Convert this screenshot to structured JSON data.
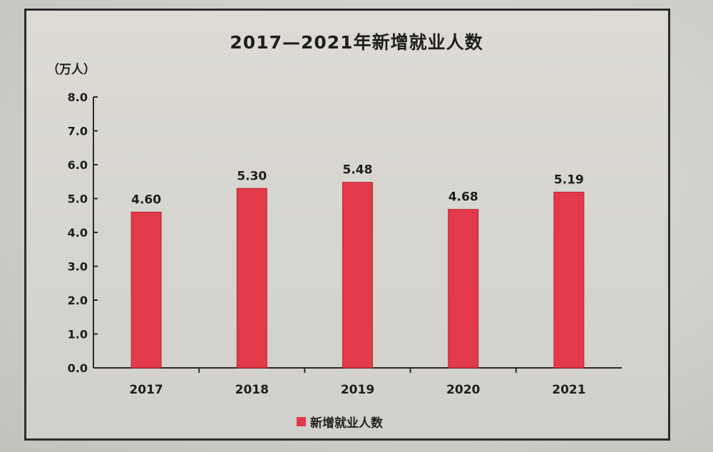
{
  "chart_data": {
    "type": "bar",
    "title": "2017—2021年新增就业人数",
    "ylabel": "（万人）",
    "xlabel": "",
    "categories": [
      "2017",
      "2018",
      "2019",
      "2020",
      "2021"
    ],
    "series": [
      {
        "name": "新增就业人数",
        "values": [
          4.6,
          5.3,
          5.48,
          4.68,
          5.19
        ],
        "labels": [
          "4.60",
          "5.30",
          "5.48",
          "4.68",
          "5.19"
        ]
      }
    ],
    "yticks": [
      "0.0",
      "1.0",
      "2.0",
      "3.0",
      "4.0",
      "5.0",
      "6.0",
      "7.0",
      "8.0"
    ],
    "ylim": [
      0,
      8
    ],
    "grid": false,
    "legend": "bottom-center",
    "bar_color": "#e23a4a"
  }
}
